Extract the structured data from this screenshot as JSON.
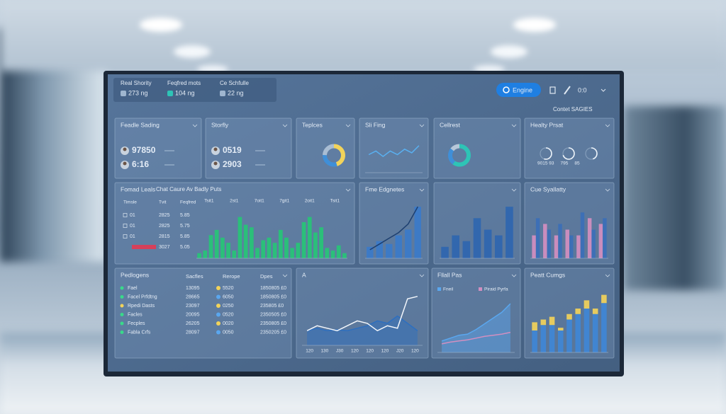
{
  "header": {
    "stats": [
      {
        "label": "Real Shority",
        "value": "273 ng"
      },
      {
        "label": "Feqfred mots",
        "value": "104 ng"
      },
      {
        "label": "Ce Schfulle",
        "value": "22 ng"
      }
    ],
    "button": "Engine",
    "clock": "0:0",
    "caption": "Contet SAGIES"
  },
  "widgets": [
    {
      "type": "kpi",
      "title": "Feadle Sading",
      "items": [
        "97850",
        "6:16"
      ]
    },
    {
      "type": "kpi",
      "title": "Storfly",
      "items": [
        "0519",
        "2903"
      ]
    },
    {
      "type": "donut",
      "title": "Teplces",
      "values": [
        45,
        30,
        25
      ],
      "colors": [
        "#f2d35a",
        "#3f8fd8",
        "#a9bdd3"
      ]
    },
    {
      "type": "plot",
      "title": "Sli Fing",
      "ylim": [
        0,
        10
      ],
      "series": [
        {
          "kind": "line",
          "color": "#59b0f0",
          "values": [
            5,
            6,
            4.5,
            6,
            5,
            6.5,
            5.5,
            7.5
          ]
        }
      ]
    },
    {
      "type": "donut",
      "title": "Cellrest",
      "values": [
        60,
        25,
        15
      ],
      "colors": [
        "#2ec4b6",
        "#3f8fd8",
        "#b7c7d9"
      ]
    },
    {
      "type": "gauge",
      "title": "Healty Prsat",
      "values": [
        55,
        70,
        45
      ],
      "caption": "9015 93     795     85"
    },
    {
      "type": "table-bar",
      "title": "Fomad Leals",
      "subtitle": "Chat Caure   Av Badly Puts",
      "columns": [
        "Timsle",
        "Tvit",
        "Feqfred"
      ],
      "rows": [
        [
          "01",
          "2825",
          "5.85"
        ],
        [
          "01",
          "2825",
          "5.75"
        ],
        [
          "01",
          "2815",
          "5.85"
        ],
        [
          "3027",
          "5.05"
        ]
      ],
      "xticks": [
        "Tsit1",
        "2st1",
        "7oit1",
        "7git1",
        "2oit1",
        "Tsit1"
      ],
      "ylim": [
        0,
        10
      ],
      "color": "#2bbf7a",
      "values": [
        1,
        1.5,
        4.5,
        5.5,
        4,
        3,
        1.5,
        8,
        6.5,
        6,
        2,
        3.5,
        4,
        3,
        5.5,
        4,
        2,
        3,
        7,
        8,
        5,
        6,
        2,
        1.5,
        2.5,
        1
      ]
    },
    {
      "type": "plot",
      "title": "Fme Edgnetes",
      "ylim": [
        0,
        10
      ],
      "series": [
        {
          "kind": "bar",
          "color": "#3b7ac9",
          "values": [
            2,
            3,
            2.5,
            4,
            5,
            9
          ]
        },
        {
          "kind": "line",
          "color": "#1d3f70",
          "values": [
            1.5,
            2.5,
            3.5,
            4.5,
            6,
            9
          ]
        }
      ]
    },
    {
      "type": "plot",
      "ylim": [
        0,
        10
      ],
      "series": [
        {
          "kind": "bar",
          "color": "#2f66b0",
          "values": [
            2,
            4,
            3,
            7,
            5,
            4,
            9
          ]
        }
      ]
    },
    {
      "type": "plot",
      "title": "Cue Syallatty",
      "ylim": [
        0,
        10
      ],
      "series": [
        {
          "kind": "bar",
          "color": "#d28fc0",
          "values": [
            4,
            6,
            4,
            5,
            4,
            7,
            6
          ]
        },
        {
          "kind": "bar",
          "color": "#3b6fb8",
          "values": [
            7,
            5,
            6,
            4,
            8,
            5,
            7
          ]
        }
      ]
    },
    {
      "type": "list",
      "title": "Pedlogens",
      "columns": [
        "Sacfles",
        "Rerope",
        "Dpes"
      ],
      "rows": [
        [
          "Fael",
          "13095",
          "5520",
          "1850805 £0"
        ],
        [
          "Facel Prfdtng",
          "28665",
          "6050",
          "1850805 £0"
        ],
        [
          "Rpedi Dasts",
          "23097",
          "0250",
          "235805 £0"
        ],
        [
          "Facles",
          "20095",
          "0520",
          "2350505 £0"
        ],
        [
          "Fecples",
          "26205",
          "0020",
          "2350805 £0"
        ],
        [
          "Fabla Crfs",
          "28097",
          "0050",
          "2350205 £0"
        ]
      ],
      "dot_colors": [
        [
          "#39d98a",
          "#f2d35a"
        ],
        [
          "#39d98a",
          "#5aa7ef"
        ],
        [
          "#f2d35a",
          "#f2d35a"
        ],
        [
          "#39d98a",
          "#5aa7ef"
        ],
        [
          "#39d98a",
          "#f2d35a"
        ],
        [
          "#39d98a",
          "#5aa7ef"
        ]
      ]
    },
    {
      "type": "plot",
      "title": "A",
      "ylim": [
        0,
        12
      ],
      "xticks": [
        "120",
        "130",
        "J30",
        "120",
        "120",
        "120",
        "J20",
        "120"
      ],
      "series": [
        {
          "kind": "line",
          "area": true,
          "color": "#2d6fc0",
          "values": [
            3,
            3.5,
            3,
            3.2,
            3,
            3.5,
            4,
            5,
            4.5,
            6,
            4.5,
            3
          ]
        },
        {
          "kind": "line",
          "color": "#f2f6fb",
          "values": [
            3,
            4,
            3.5,
            3,
            4,
            5,
            4.5,
            3,
            4,
            3.5,
            9.5,
            10
          ]
        }
      ]
    },
    {
      "type": "plot",
      "title": "Fllall Pas",
      "ylim": [
        0,
        10
      ],
      "legend": true,
      "series": [
        {
          "kind": "line",
          "area": true,
          "name": "Fneil",
          "color": "#5aa7ef",
          "values": [
            2,
            2.5,
            3,
            3.2,
            4,
            5,
            6,
            7,
            8.5
          ]
        },
        {
          "kind": "line",
          "name": "Piraid Pyrfa",
          "color": "#d28fc0",
          "values": [
            1.5,
            1.8,
            2,
            2.2,
            2.5,
            2.8,
            3,
            3.2,
            3.5
          ]
        }
      ]
    },
    {
      "type": "plot",
      "title": "Peatt Cumgs",
      "ylim": [
        0,
        12
      ],
      "stacked": true,
      "series": [
        {
          "kind": "bar",
          "color": "#3f87d6",
          "values": [
            4,
            5,
            5,
            4,
            6,
            7,
            8,
            7,
            9
          ]
        },
        {
          "kind": "bar",
          "color": "#f2d35a",
          "values": [
            1.5,
            1,
            1.5,
            0.5,
            1,
            1,
            1.5,
            1,
            1.5
          ]
        }
      ]
    }
  ]
}
